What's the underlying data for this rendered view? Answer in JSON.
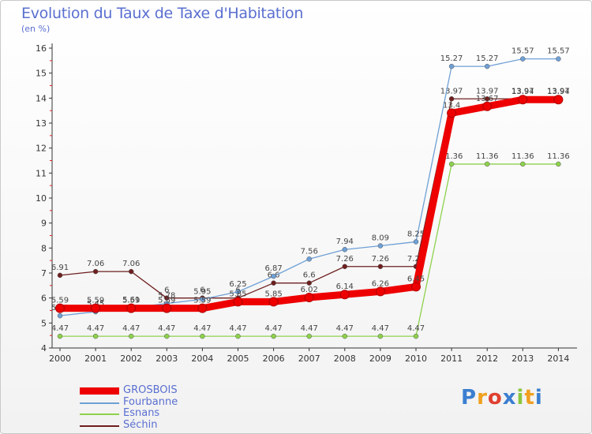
{
  "title": "Evolution du Taux de Taxe d'Habitation",
  "subtitle": "(en %)",
  "logo": "Proxiti",
  "chart_data": {
    "type": "line",
    "title": "Evolution du Taux de Taxe d'Habitation",
    "ylabel": "(en %)",
    "xlabel": "",
    "x": [
      2000,
      2001,
      2002,
      2003,
      2004,
      2005,
      2006,
      2007,
      2008,
      2009,
      2010,
      2011,
      2012,
      2013,
      2014
    ],
    "ylim": [
      4,
      16
    ],
    "yticks": [
      4,
      5,
      6,
      7,
      8,
      9,
      10,
      11,
      12,
      13,
      14,
      15,
      16
    ],
    "grid": false,
    "legend_position": "bottom-left",
    "series": [
      {
        "name": "Séchin",
        "color": "#6e1f1f",
        "width": 1.3,
        "labels": [
          "6.91",
          "7.06",
          "7.06",
          "6",
          "6",
          "6",
          "6.6",
          "6.6",
          "7.26",
          "7.26",
          "7.26",
          "13.97",
          "13.97",
          "13.97",
          "13.97"
        ],
        "values": [
          6.91,
          7.06,
          7.06,
          6,
          6,
          6,
          6.6,
          6.6,
          7.26,
          7.26,
          7.26,
          13.97,
          13.97,
          13.97,
          13.97
        ]
      },
      {
        "name": "Esnans",
        "color": "#8ed14c",
        "width": 1.3,
        "labels": [
          "4.47",
          "4.47",
          "4.47",
          "4.47",
          "4.47",
          "4.47",
          "4.47",
          "4.47",
          "4.47",
          "4.47",
          "4.47",
          "11.36",
          "11.36",
          "11.36",
          "11.36"
        ],
        "values": [
          4.47,
          4.47,
          4.47,
          4.47,
          4.47,
          4.47,
          4.47,
          4.47,
          4.47,
          4.47,
          4.47,
          11.36,
          11.36,
          11.36,
          11.36
        ]
      },
      {
        "name": "Fourbanne",
        "color": "#6fa0d6",
        "width": 1.3,
        "labels": [
          "5.29",
          "5.45",
          "5.61",
          "5.78",
          "5.95",
          "6.25",
          "6.87",
          "7.56",
          "7.94",
          "8.09",
          "8.25",
          "15.27",
          "15.27",
          "15.57",
          "15.57"
        ],
        "values": [
          5.29,
          5.45,
          5.61,
          5.78,
          5.95,
          6.25,
          6.87,
          7.56,
          7.94,
          8.09,
          8.25,
          15.27,
          15.27,
          15.57,
          15.57
        ]
      },
      {
        "name": "GROSBOIS",
        "color": "#ee0000",
        "width": 9,
        "labels": [
          "5.59",
          "5.59",
          "5.59",
          "5.59",
          "5.59",
          "5.85",
          "5.85",
          "6.02",
          "6.14",
          "6.26",
          "6.45",
          "13.4",
          "13.67",
          "13.94",
          "13.94"
        ],
        "values": [
          5.59,
          5.59,
          5.59,
          5.59,
          5.59,
          5.85,
          5.85,
          6.02,
          6.14,
          6.26,
          6.45,
          13.4,
          13.67,
          13.94,
          13.94
        ]
      }
    ]
  },
  "legend": [
    {
      "label": "GROSBOIS",
      "color": "#ee0000"
    },
    {
      "label": "Fourbanne",
      "color": "#6fa0d6"
    },
    {
      "label": "Esnans",
      "color": "#8ed14c"
    },
    {
      "label": "Séchin",
      "color": "#6e1f1f"
    }
  ]
}
